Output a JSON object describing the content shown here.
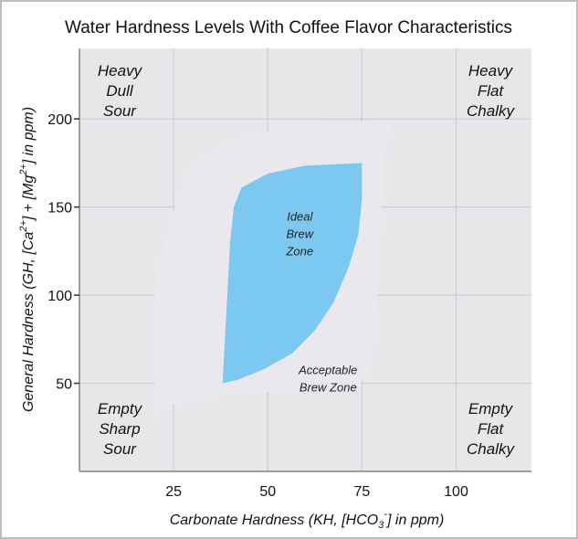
{
  "chart_data": {
    "type": "area",
    "title": "Water Hardness Levels With Coffee Flavor Characteristics",
    "xlabel": "Carbonate Hardness (KH, [HCO3-] in ppm)",
    "xlabel_parts": {
      "pre": "Carbonate Hardness (KH, [HCO",
      "sub": "3",
      "sup": "-",
      "post": "] in ppm)"
    },
    "ylabel": "General Hardness (GH, [Ca2+] + [Mg2+] in ppm)",
    "ylabel_parts": {
      "pre": "General Hardness (GH, [Ca",
      "sup1": "2+",
      "mid": "] + [Mg",
      "sup2": "2+",
      "post": "] in ppm)"
    },
    "xlim": [
      0,
      120
    ],
    "ylim": [
      0,
      240
    ],
    "x_ticks": [
      25,
      50,
      75,
      100
    ],
    "y_ticks": [
      50,
      100,
      150,
      200
    ],
    "x_tick_labels": [
      "25",
      "50",
      "75",
      "100"
    ],
    "y_tick_labels": [
      "50",
      "100",
      "150",
      "200"
    ],
    "grid": true,
    "regions": [
      {
        "name": "Acceptable Brew Zone",
        "label_lines": [
          "Acceptable",
          "Brew Zone"
        ],
        "label_pos": [
          66,
          53
        ],
        "color": "#eae8ec",
        "polygon": [
          [
            20,
            32
          ],
          [
            20,
            100
          ],
          [
            20.6,
            113
          ],
          [
            22.5,
            130
          ],
          [
            25.3,
            150
          ],
          [
            28,
            165
          ],
          [
            31,
            176
          ],
          [
            39,
            186
          ],
          [
            50,
            193
          ],
          [
            66,
            198
          ],
          [
            83,
            199
          ],
          [
            81,
            181
          ],
          [
            80,
            140
          ],
          [
            79,
            100
          ],
          [
            78,
            76
          ],
          [
            77,
            58
          ],
          [
            74,
            48
          ],
          [
            66,
            46
          ],
          [
            50,
            45
          ],
          [
            38,
            44
          ],
          [
            22,
            37
          ]
        ]
      },
      {
        "name": "Ideal Brew Zone",
        "label_lines": [
          "Ideal",
          "Brew",
          "Zone"
        ],
        "label_pos": [
          58.5,
          135
        ],
        "color": "#7cc8f0",
        "polygon": [
          [
            38,
            50
          ],
          [
            39,
            90
          ],
          [
            40,
            130
          ],
          [
            41,
            150
          ],
          [
            43,
            161
          ],
          [
            50,
            169
          ],
          [
            60,
            173.5
          ],
          [
            75,
            175
          ],
          [
            75,
            154
          ],
          [
            74,
            134
          ],
          [
            71.5,
            116
          ],
          [
            67.5,
            96
          ],
          [
            62.5,
            80
          ],
          [
            56.5,
            67
          ],
          [
            49,
            58
          ],
          [
            42,
            52
          ]
        ]
      }
    ],
    "corner_labels": [
      {
        "lines": [
          "Heavy",
          "Dull",
          "Sour"
        ],
        "position": "top-left"
      },
      {
        "lines": [
          "Heavy",
          "Flat",
          "Chalky"
        ],
        "position": "top-right"
      },
      {
        "lines": [
          "Empty",
          "Sharp",
          "Sour"
        ],
        "position": "bottom-left"
      },
      {
        "lines": [
          "Empty",
          "Flat",
          "Chalky"
        ],
        "position": "bottom-right"
      }
    ],
    "colors": {
      "plot_background": "#e6e7e9",
      "gridline": "#c9ced6",
      "axis": "#9aa0a8"
    }
  }
}
